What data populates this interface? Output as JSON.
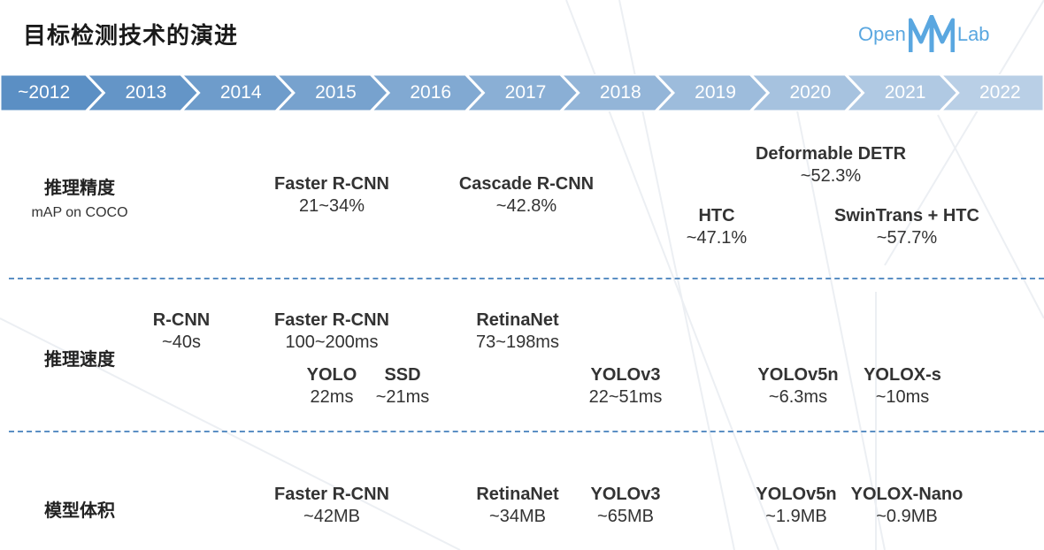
{
  "title": "目标检测技术的演进",
  "logo": {
    "text_left": "Open",
    "text_mm": "MM",
    "text_right": "Lab",
    "color": "#5aa7e0"
  },
  "timeline": {
    "years": [
      "~2012",
      "2013",
      "2014",
      "2015",
      "2016",
      "2017",
      "2018",
      "2019",
      "2020",
      "2021",
      "2022"
    ],
    "color_start": "#5b8fc4",
    "color_end": "#b9cfe6"
  },
  "rows": {
    "accuracy": {
      "label": "推理精度",
      "sub": "mAP on COCO"
    },
    "speed": {
      "label": "推理速度"
    },
    "size": {
      "label": "模型体积"
    }
  },
  "accuracy_items": [
    {
      "name": "Faster R-CNN",
      "value": "21~34%"
    },
    {
      "name": "Cascade R-CNN",
      "value": "~42.8%"
    },
    {
      "name": "Deformable DETR",
      "value": "~52.3%"
    },
    {
      "name": "HTC",
      "value": "~47.1%"
    },
    {
      "name": "SwinTrans + HTC",
      "value": "~57.7%"
    }
  ],
  "speed_items": [
    {
      "name": "R-CNN",
      "value": "~40s"
    },
    {
      "name": "Faster R-CNN",
      "value": "100~200ms"
    },
    {
      "name": "RetinaNet",
      "value": "73~198ms"
    },
    {
      "name": "YOLO",
      "value": "22ms"
    },
    {
      "name": "SSD",
      "value": "~21ms"
    },
    {
      "name": "YOLOv3",
      "value": "22~51ms"
    },
    {
      "name": "YOLOv5n",
      "value": "~6.3ms"
    },
    {
      "name": "YOLOX-s",
      "value": "~10ms"
    }
  ],
  "size_items": [
    {
      "name": "Faster R-CNN",
      "value": "~42MB"
    },
    {
      "name": "RetinaNet",
      "value": "~34MB"
    },
    {
      "name": "YOLOv3",
      "value": "~65MB"
    },
    {
      "name": "YOLOv5n",
      "value": "~1.9MB"
    },
    {
      "name": "YOLOX-Nano",
      "value": "~0.9MB"
    }
  ]
}
